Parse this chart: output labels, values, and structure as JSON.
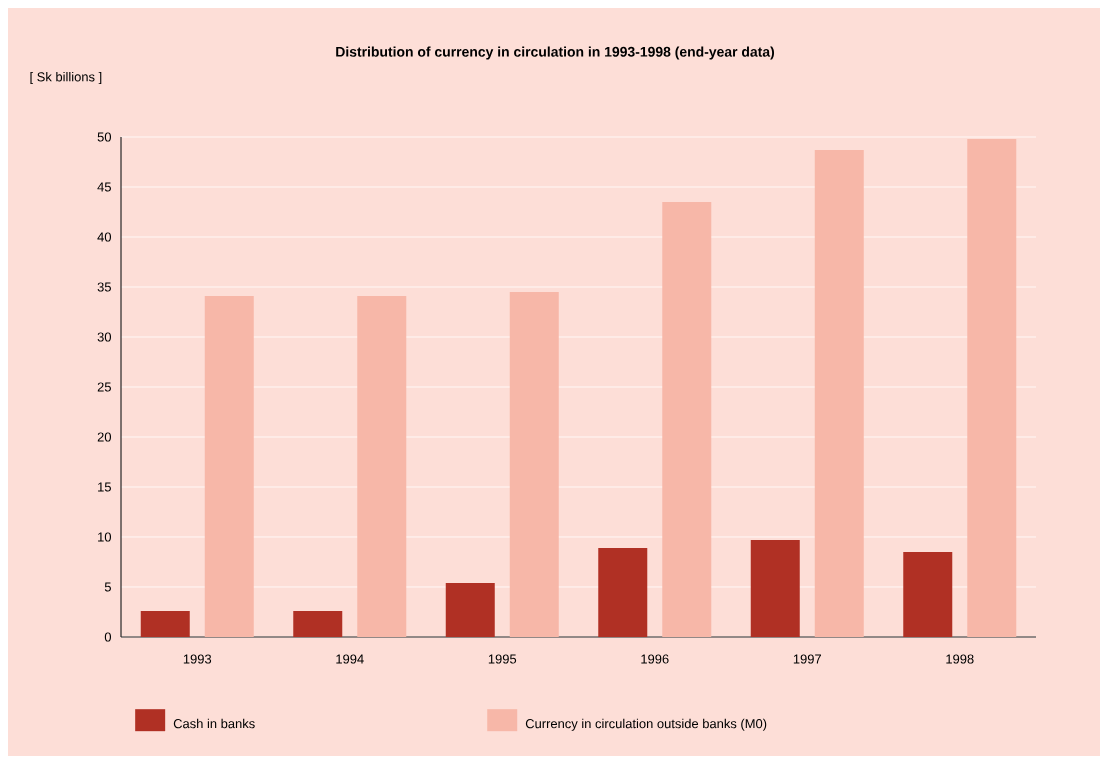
{
  "chart_data": {
    "type": "bar",
    "title": "Distribution of currency in circulation in 1993-1998 (end-year data)",
    "ylabel": "[ Sk billions ]",
    "categories": [
      "1993",
      "1994",
      "1995",
      "1996",
      "1997",
      "1998"
    ],
    "series": [
      {
        "name": "Cash in banks",
        "color": "#b03024",
        "values": [
          2.6,
          2.6,
          5.4,
          8.9,
          9.7,
          8.5
        ]
      },
      {
        "name": "Currency in circulation outside banks (M0)",
        "color": "#f7b7a8",
        "values": [
          34.1,
          34.1,
          34.5,
          43.5,
          48.7,
          49.8
        ]
      }
    ],
    "ylim": [
      0,
      50
    ],
    "yticks": [
      0,
      5,
      10,
      15,
      20,
      25,
      30,
      35,
      40,
      45,
      50
    ],
    "grid": "y",
    "legend": "bottom"
  }
}
